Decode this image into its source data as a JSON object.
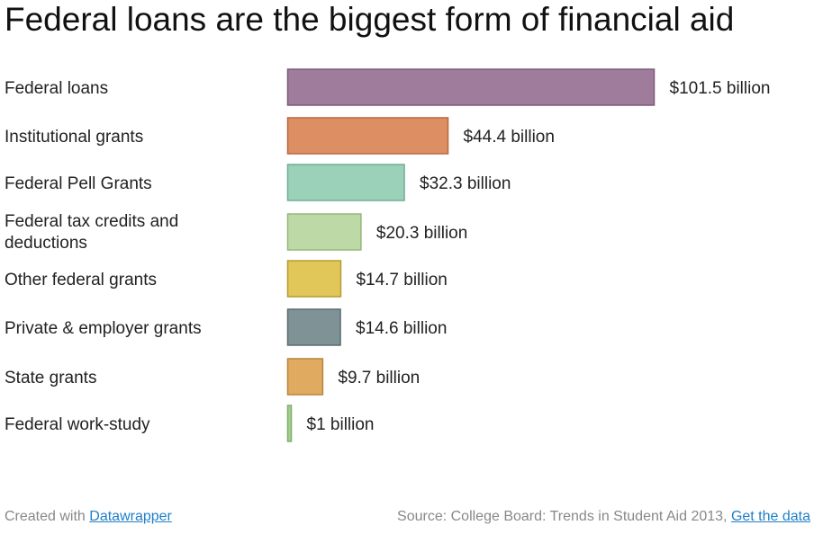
{
  "chart_data": {
    "type": "bar",
    "orientation": "horizontal",
    "title": "Federal loans are the biggest form of financial aid",
    "categories": [
      "Federal loans",
      "Institutional grants",
      "Federal Pell Grants",
      "Federal tax credits and deductions",
      "Other federal grants",
      "Private & employer grants",
      "State grants",
      "Federal work-study"
    ],
    "values": [
      101.5,
      44.4,
      32.3,
      20.3,
      14.7,
      14.6,
      9.7,
      1
    ],
    "value_labels": [
      "$101.5 billion",
      "$44.4 billion",
      "$32.3 billion",
      "$20.3 billion",
      "$14.7 billion",
      "$14.6 billion",
      "$9.7 billion",
      "$1 billion"
    ],
    "colors": [
      "#a07c9c",
      "#de8e63",
      "#9bd0b9",
      "#bddaa6",
      "#e1c65a",
      "#7f9296",
      "#e0aa60",
      "#a5cf92"
    ],
    "stroke_colors": [
      "#7d5a79",
      "#b8683f",
      "#6fae96",
      "#95b77c",
      "#b59b30",
      "#5b6c70",
      "#b8843c",
      "#7fae6b"
    ],
    "unit": "billion",
    "xlim": [
      0,
      101.5
    ],
    "grid": false,
    "legend": "none"
  },
  "footer": {
    "created_with": "Created with ",
    "created_link": "Datawrapper",
    "source": "Source: College Board: Trends in Student Aid 2013, ",
    "source_link": "Get the data"
  }
}
